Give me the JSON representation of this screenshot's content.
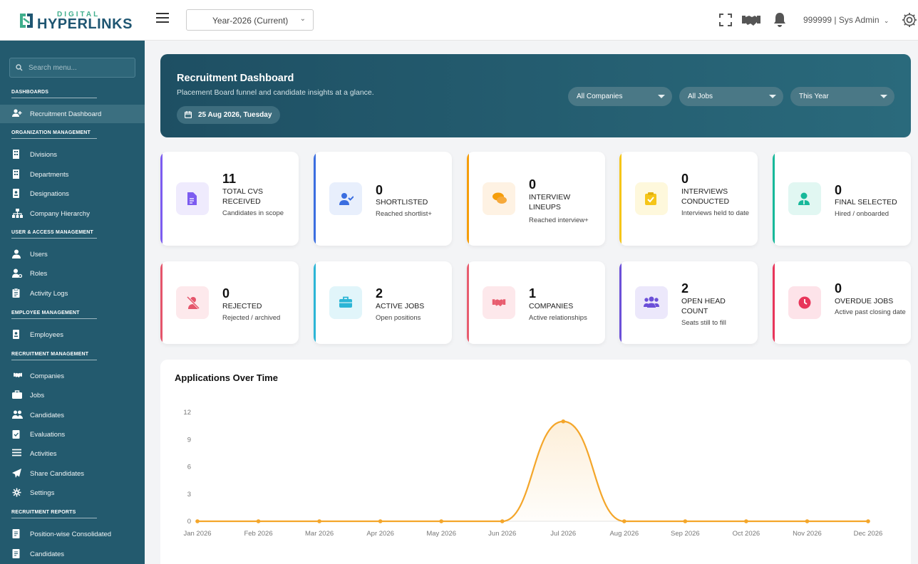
{
  "topbar": {
    "logo_small": "DIGITAL",
    "logo_big": "HYPERLINKS",
    "year_select": "Year-2026 (Current)",
    "user": "999999 | Sys Admin"
  },
  "sidebar": {
    "search_placeholder": "Search menu...",
    "sections": {
      "dashboards": "DASHBOARDS",
      "org": "ORGANIZATION MANAGEMENT",
      "user_access": "USER & ACCESS MANAGEMENT",
      "employee": "EMPLOYEE MANAGEMENT",
      "recruitment": "RECRUITMENT MANAGEMENT",
      "reports": "RECRUITMENT REPORTS"
    },
    "items": {
      "recruitment_dashboard": "Recruitment Dashboard",
      "divisions": "Divisions",
      "departments": "Departments",
      "designations": "Designations",
      "company_hierarchy": "Company Hierarchy",
      "users": "Users",
      "roles": "Roles",
      "activity_logs": "Activity Logs",
      "employees": "Employees",
      "companies": "Companies",
      "jobs": "Jobs",
      "candidates": "Candidates",
      "evaluations": "Evaluations",
      "activities": "Activities",
      "share_candidates": "Share Candidates",
      "settings": "Settings",
      "position_consolidated": "Position-wise Consolidated",
      "report_candidates": "Candidates"
    }
  },
  "hero": {
    "title": "Recruitment Dashboard",
    "subtitle": "Placement Board funnel and candidate insights at a glance.",
    "date": "25 Aug 2026, Tuesday",
    "filters": {
      "companies": "All Companies",
      "jobs": "All Jobs",
      "period": "This Year"
    }
  },
  "cards": {
    "cvs": {
      "value": "11",
      "label": "TOTAL CVS RECEIVED",
      "sub": "Candidates in scope",
      "color": "#7c5cf0"
    },
    "shortlisted": {
      "value": "0",
      "label": "SHORTLISTED",
      "sub": "Reached shortlist+",
      "color": "#3b6ee0"
    },
    "lineups": {
      "value": "0",
      "label": "INTERVIEW LINEUPS",
      "sub": "Reached interview+",
      "color": "#f59e0b"
    },
    "conducted": {
      "value": "0",
      "label": "INTERVIEWS CONDUCTED",
      "sub": "Interviews held to date",
      "color": "#f5c518"
    },
    "selected": {
      "value": "0",
      "label": "FINAL SELECTED",
      "sub": "Hired / onboarded",
      "color": "#17b89a"
    },
    "rejected": {
      "value": "0",
      "label": "REJECTED",
      "sub": "Rejected / archived",
      "color": "#e5556b"
    },
    "active_jobs": {
      "value": "2",
      "label": "ACTIVE JOBS",
      "sub": "Open positions",
      "color": "#2cb5d6"
    },
    "companies": {
      "value": "1",
      "label": "COMPANIES",
      "sub": "Active relationships",
      "color": "#e85d6f"
    },
    "headcount": {
      "value": "2",
      "label": "OPEN HEAD COUNT",
      "sub": "Seats still to fill",
      "color": "#6b4fd8"
    },
    "overdue": {
      "value": "0",
      "label": "OVERDUE JOBS",
      "sub": "Active past closing date",
      "color": "#e8355a"
    }
  },
  "chart_data": {
    "type": "line",
    "title": "Applications Over Time",
    "categories": [
      "Jan 2026",
      "Feb 2026",
      "Mar 2026",
      "Apr 2026",
      "May 2026",
      "Jun 2026",
      "Jul 2026",
      "Aug 2026",
      "Sep 2026",
      "Oct 2026",
      "Nov 2026",
      "Dec 2026"
    ],
    "series": [
      {
        "values": [
          0,
          0,
          0,
          0,
          0,
          0,
          11,
          0,
          0,
          0,
          0,
          0
        ]
      }
    ],
    "yticks": [
      0,
      3,
      6,
      9,
      12
    ],
    "ylim": [
      0,
      12
    ],
    "line_color": "#f4a62a",
    "smooth": true,
    "area_fill": true
  }
}
